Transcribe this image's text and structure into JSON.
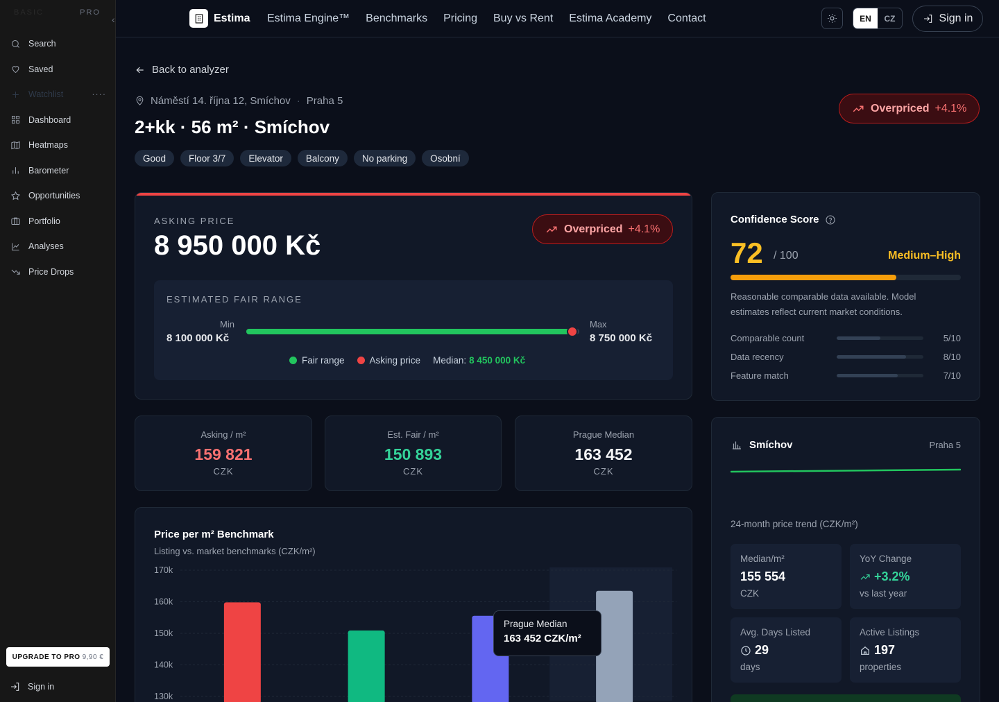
{
  "sidebar": {
    "plan_basic": "BASIC",
    "plan_pro": "PRO",
    "items": [
      {
        "label": "Search",
        "icon": "search-icon"
      },
      {
        "label": "Saved",
        "icon": "heart-icon"
      },
      {
        "label": "Watchlist",
        "icon": "plus-icon"
      },
      {
        "label": "Dashboard",
        "icon": "grid-icon"
      },
      {
        "label": "Heatmaps",
        "icon": "map-icon"
      },
      {
        "label": "Barometer",
        "icon": "bar-chart-icon"
      },
      {
        "label": "Opportunities",
        "icon": "star-icon"
      },
      {
        "label": "Portfolio",
        "icon": "briefcase-icon"
      },
      {
        "label": "Analyses",
        "icon": "line-chart-icon"
      },
      {
        "label": "Price Drops",
        "icon": "trending-down-icon"
      }
    ],
    "more": "····",
    "upgrade_label": "UPGRADE TO PRO",
    "upgrade_price": "9,90 €",
    "signin": "Sign in"
  },
  "topbar": {
    "brand": "Estima",
    "nav": [
      "Estima Engine™",
      "Benchmarks",
      "Pricing",
      "Buy vs Rent",
      "Estima Academy",
      "Contact"
    ],
    "lang_en": "EN",
    "lang_cz": "CZ",
    "signin": "Sign in"
  },
  "header": {
    "back": "Back to analyzer",
    "street": "Náměstí 14. října 12, Smíchov",
    "district": "Praha 5",
    "title": "2+kk · 56 m² · Smíchov",
    "tags": [
      "Good",
      "Floor 3/7",
      "Elevator",
      "Balcony",
      "No parking",
      "Osobní"
    ],
    "badge_label": "Overpriced",
    "badge_pct": "+4.1%"
  },
  "asking": {
    "label": "ASKING PRICE",
    "value": "8 950 000 Kč",
    "badge_label": "Overpriced",
    "badge_pct": "+4.1%",
    "fair_label": "ESTIMATED FAIR RANGE",
    "min_label": "Min",
    "min_value": "8 100 000 Kč",
    "max_label": "Max",
    "max_value": "8 750 000 Kč",
    "asking_position": 0.98,
    "legend_fair": "Fair range",
    "legend_asking": "Asking price",
    "median_label": "Median:",
    "median_value": "8 450 000 Kč",
    "colors": {
      "fair": "#22c55e",
      "asking": "#ef4444"
    }
  },
  "confidence": {
    "title": "Confidence Score",
    "score": "72",
    "out_of": "/ 100",
    "score_fraction": 0.72,
    "level": "Medium–High",
    "description": "Reasonable comparable data available. Model estimates reflect current market conditions.",
    "factors": [
      {
        "name": "Comparable count",
        "value": "5/10",
        "fraction": 0.5
      },
      {
        "name": "Data recency",
        "value": "8/10",
        "fraction": 0.8
      },
      {
        "name": "Feature match",
        "value": "7/10",
        "fraction": 0.7
      }
    ]
  },
  "stats": [
    {
      "label": "Asking / m²",
      "value": "159 821",
      "unit": "CZK",
      "color": "#f87171"
    },
    {
      "label": "Est. Fair / m²",
      "value": "150 893",
      "unit": "CZK",
      "color": "#34d399"
    },
    {
      "label": "Prague Median",
      "value": "163 452",
      "unit": "CZK",
      "color": "#f3f4f6"
    }
  ],
  "benchmark": {
    "title": "Price per m² Benchmark",
    "subtitle": "Listing vs. market benchmarks (CZK/m²)",
    "tooltip_title": "Prague Median",
    "tooltip_value": "163 452 CZK/m²"
  },
  "chart_data": {
    "type": "bar",
    "title": "Price per m² Benchmark",
    "subtitle": "Listing vs. market benchmarks (CZK/m²)",
    "values": [
      159821,
      150893,
      155554,
      163452
    ],
    "colors": [
      "#ef4444",
      "#10b981",
      "#6366f1",
      "#94a3b8"
    ],
    "yticks": [
      "170k",
      "160k",
      "150k",
      "140k",
      "130k"
    ],
    "ytick_values": [
      170000,
      160000,
      150000,
      140000,
      130000
    ],
    "ylim": [
      130000,
      170000
    ],
    "grid": true,
    "highlighted_index": 3
  },
  "district": {
    "name": "Smíchov",
    "region": "Praha 5",
    "trend_label": "24-month price trend (CZK/m²)",
    "median_label": "Median/m²",
    "median_value": "155 554",
    "median_unit": "CZK",
    "yoy_label": "YoY Change",
    "yoy_value": "+3.2%",
    "yoy_unit": "vs last year",
    "days_label": "Avg. Days Listed",
    "days_value": "29",
    "days_unit": "days",
    "listings_label": "Active Listings",
    "listings_value": "197",
    "listings_unit": "properties",
    "accent": "#22c55e"
  }
}
